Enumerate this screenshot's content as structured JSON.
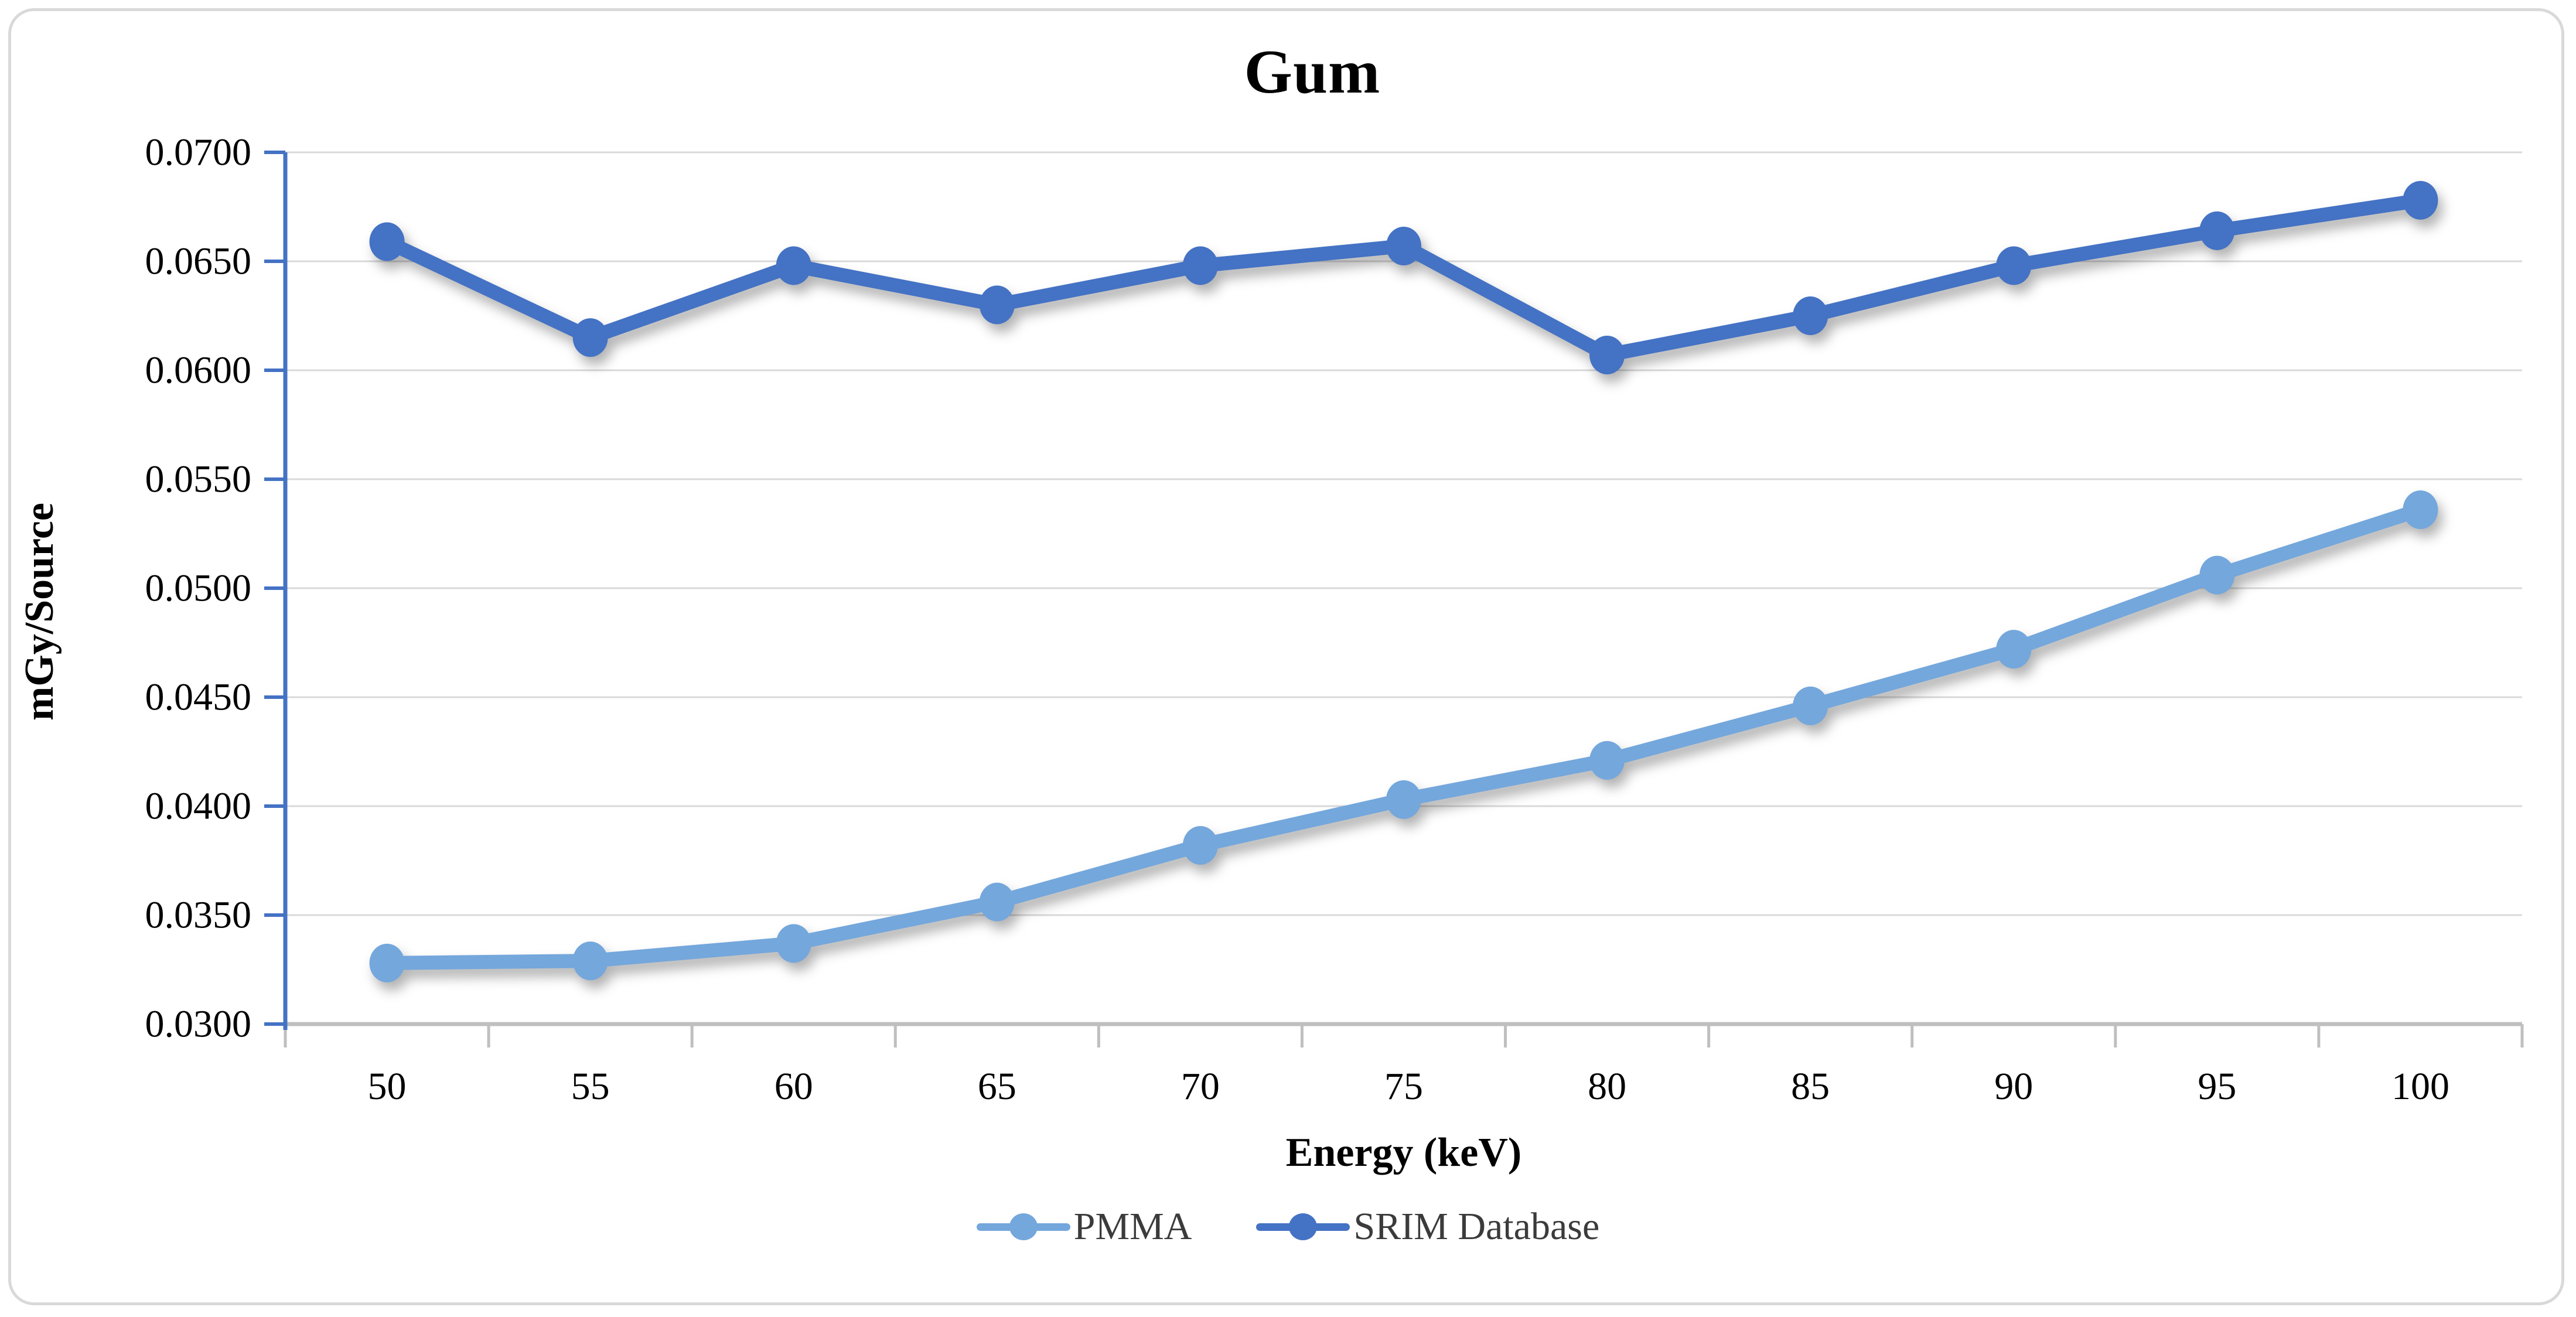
{
  "title": "Gum",
  "axes": {
    "y_title": "mGy/Source",
    "x_title": "Energy (keV)"
  },
  "legend": {
    "items": [
      {
        "label": "PMMA",
        "color": "#74a7dc"
      },
      {
        "label": "SRIM Database",
        "color": "#4472c4"
      }
    ]
  },
  "chart_data": {
    "type": "line",
    "title": "Gum",
    "xlabel": "Energy (keV)",
    "ylabel": "mGy/Source",
    "x": [
      50,
      55,
      60,
      65,
      70,
      75,
      80,
      85,
      90,
      95,
      100
    ],
    "x_tick_labels": [
      "50",
      "55",
      "60",
      "65",
      "70",
      "75",
      "80",
      "85",
      "90",
      "95",
      "100"
    ],
    "ylim": [
      0.03,
      0.07
    ],
    "y_tick_step": 0.005,
    "y_tick_labels": [
      "0.0300",
      "0.0350",
      "0.0400",
      "0.0450",
      "0.0500",
      "0.0550",
      "0.0600",
      "0.0650",
      "0.0700"
    ],
    "grid": "horizontal-only",
    "legend_position": "bottom-center",
    "series": [
      {
        "name": "PMMA",
        "color": "#74a7dc",
        "values": [
          0.0328,
          0.0329,
          0.0337,
          0.0356,
          0.0382,
          0.0403,
          0.0421,
          0.0446,
          0.0472,
          0.0506,
          0.0536
        ]
      },
      {
        "name": "SRIM Database",
        "color": "#4472c4",
        "values": [
          0.0659,
          0.0615,
          0.0648,
          0.063,
          0.0648,
          0.0657,
          0.0607,
          0.0625,
          0.0648,
          0.0664,
          0.0678
        ]
      }
    ]
  },
  "colors": {
    "y_axis_line": "#4472c4",
    "x_axis_line": "#bfbfbf",
    "gridline": "#d9d9d9",
    "frame_border": "#d9d9d9",
    "tick_label": "#000000"
  }
}
